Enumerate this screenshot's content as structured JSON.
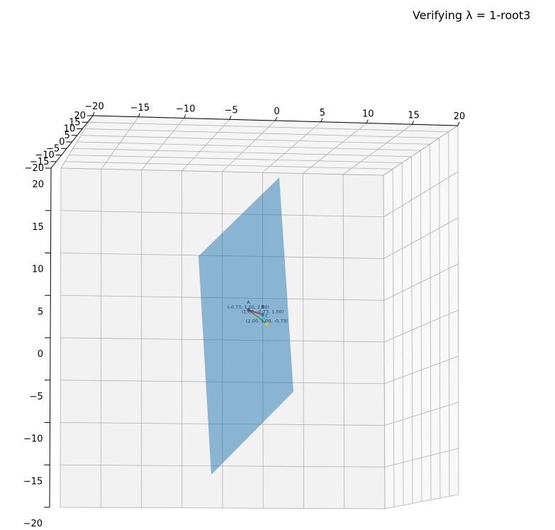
{
  "title": "Verifying λ = 1-root3",
  "chart_data": {
    "type": "3d-surface",
    "title": "Verifying λ = 1-root3",
    "xlabel": "",
    "ylabel": "",
    "zlabel": "",
    "xlim": [
      -20,
      20
    ],
    "ylim": [
      -20,
      20
    ],
    "zlim": [
      -20,
      20
    ],
    "x_ticks": [
      "−20",
      "−15",
      "−10",
      "−5",
      "0",
      "5",
      "10",
      "15",
      "20"
    ],
    "y_ticks": [
      "−20",
      "−15",
      "−10",
      "−5",
      "0",
      "5",
      "10",
      "15",
      "20"
    ],
    "z_ticks": [
      "−20",
      "−15",
      "−10",
      "−5",
      "0",
      "5",
      "10",
      "15",
      "20"
    ],
    "grid": true,
    "plane": {
      "color": "#1f77b4",
      "opacity": 0.5
    },
    "points": [
      {
        "name": "A",
        "coords": [
          -0.73,
          1.0,
          2.0
        ],
        "label": "(-0.73, 1.00, 2.00)"
      },
      {
        "name": "B",
        "coords": [
          1.0,
          -0.73,
          1.0
        ],
        "label": "(1.00, -0.73, 1.00)"
      },
      {
        "name": "C",
        "coords": [
          2.0,
          1.0,
          -0.73
        ],
        "label": "(2.00, 1.00, -0.73)"
      }
    ],
    "edges": [
      {
        "from": "A",
        "to": "B",
        "color": "#d62728"
      },
      {
        "from": "A",
        "to": "C",
        "color": "#2ca02c"
      },
      {
        "from": "B",
        "to": "C",
        "color": "#17becf"
      }
    ]
  }
}
